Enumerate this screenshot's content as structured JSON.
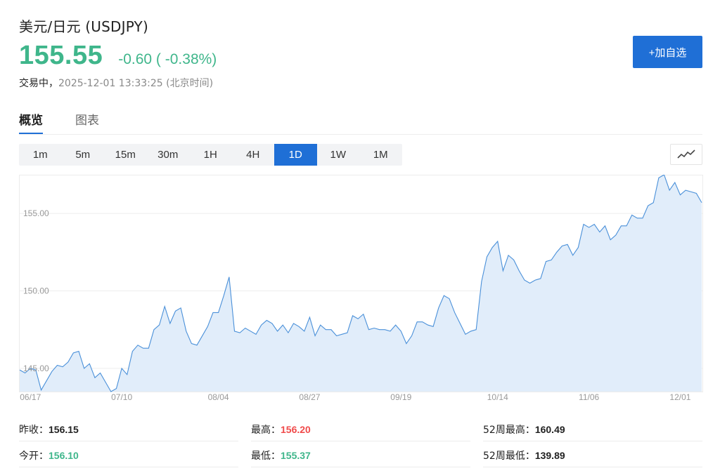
{
  "header": {
    "title": "美元/日元 (USDJPY)",
    "price": "155.55",
    "change": "-0.60 ( -0.38%)",
    "status": "交易中，",
    "timestamp": "2025-12-01 13:33:25 (北京时间)",
    "add_button": "+加自选"
  },
  "tabs": [
    {
      "label": "概览",
      "active": true
    },
    {
      "label": "图表",
      "active": false
    }
  ],
  "intervals": [
    "1m",
    "5m",
    "15m",
    "30m",
    "1H",
    "4H",
    "1D",
    "1W",
    "1M"
  ],
  "active_interval": "1D",
  "chart_type_icon": "line-chart-icon",
  "colors": {
    "accent": "#1f6fd6",
    "down": "#3fb68b",
    "up": "#f04a4a",
    "line": "#4a90d9",
    "area": "#e1edfa"
  },
  "chart_data": {
    "type": "area",
    "ylim": [
      143.5,
      157.5
    ],
    "y_ticks": [
      145.0,
      150.0,
      155.0
    ],
    "y_tick_labels": [
      "145.00",
      "150.00",
      "155.00"
    ],
    "x_ticks": [
      {
        "label": "06/17",
        "index": 2
      },
      {
        "label": "07/10",
        "index": 19
      },
      {
        "label": "08/04",
        "index": 37
      },
      {
        "label": "08/27",
        "index": 54
      },
      {
        "label": "09/19",
        "index": 71
      },
      {
        "label": "10/14",
        "index": 89
      },
      {
        "label": "11/06",
        "index": 106
      },
      {
        "label": "12/01",
        "index": 123
      }
    ],
    "grid": true,
    "values": [
      144.9,
      144.7,
      145.0,
      144.9,
      143.6,
      144.2,
      144.8,
      145.2,
      145.1,
      145.4,
      146.0,
      146.1,
      145.0,
      145.3,
      144.4,
      144.7,
      144.1,
      143.5,
      143.7,
      145.0,
      144.6,
      146.1,
      146.5,
      146.3,
      146.3,
      147.5,
      147.8,
      149.0,
      147.9,
      148.7,
      148.9,
      147.4,
      146.6,
      146.5,
      147.1,
      147.7,
      148.6,
      148.6,
      149.7,
      150.9,
      147.4,
      147.3,
      147.6,
      147.4,
      147.2,
      147.8,
      148.1,
      147.9,
      147.4,
      147.8,
      147.3,
      147.9,
      147.7,
      147.4,
      148.3,
      147.1,
      147.8,
      147.5,
      147.5,
      147.1,
      147.2,
      147.3,
      148.4,
      148.2,
      148.5,
      147.5,
      147.6,
      147.5,
      147.5,
      147.4,
      147.8,
      147.4,
      146.6,
      147.1,
      148.0,
      148.0,
      147.8,
      147.7,
      148.9,
      149.7,
      149.5,
      148.6,
      147.9,
      147.2,
      147.4,
      147.5,
      150.6,
      152.2,
      152.8,
      153.2,
      151.3,
      152.3,
      152.0,
      151.3,
      150.7,
      150.5,
      150.7,
      150.8,
      151.9,
      152.0,
      152.5,
      152.9,
      153.0,
      152.3,
      152.8,
      154.3,
      154.1,
      154.3,
      153.8,
      154.2,
      153.3,
      153.6,
      154.2,
      154.2,
      154.9,
      154.7,
      154.7,
      155.5,
      155.7,
      157.3,
      157.5,
      156.5,
      157.0,
      156.2,
      156.5,
      156.4,
      156.3,
      155.7
    ]
  },
  "stats": {
    "prev_close": {
      "label": "昨收：",
      "value": "156.15"
    },
    "high": {
      "label": "最高：",
      "value": "156.20"
    },
    "week52_high": {
      "label": "52周最高：",
      "value": "160.49"
    },
    "open": {
      "label": "今开：",
      "value": "156.10"
    },
    "low": {
      "label": "最低：",
      "value": "155.37"
    },
    "week52_low": {
      "label": "52周最低：",
      "value": "139.89"
    }
  }
}
